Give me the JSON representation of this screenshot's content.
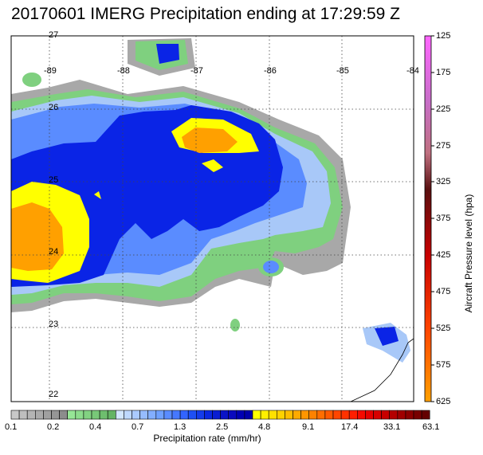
{
  "title": "20170601 IMERG Precipitation ending at 17:29:59 Z",
  "map": {
    "lon_labels": [
      "-89",
      "-88",
      "-87",
      "-86",
      "-85",
      "-84"
    ],
    "lat_labels": [
      "27",
      "26",
      "25",
      "24",
      "23",
      "22"
    ],
    "colors": {
      "grey": "#a8a8a8",
      "green": "#7fd07f",
      "lightblue": "#a8c8f8",
      "medblue": "#5a8cff",
      "blue": "#0a24e6",
      "darkblue": "#1410c8",
      "yellow": "#ffff00",
      "orange": "#ffa000"
    }
  },
  "pressure_scale": {
    "title": "Aircraft Pressure level (hpa)",
    "labels": [
      "125",
      "175",
      "225",
      "275",
      "325",
      "375",
      "425",
      "475",
      "525",
      "575",
      "625"
    ]
  },
  "rate_scale": {
    "title": "Precipitation rate (mm/hr)",
    "labels": [
      "0.1",
      "0.2",
      "0.4",
      "0.7",
      "1.3",
      "2.5",
      "4.8",
      "9.1",
      "17.4",
      "33.1",
      "63.1"
    ]
  }
}
